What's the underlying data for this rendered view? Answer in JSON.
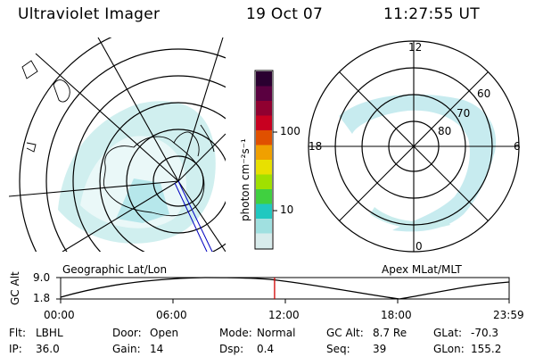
{
  "header": {
    "title": "Ultraviolet Imager",
    "date": "19 Oct 07",
    "time": "11:27:55 UT"
  },
  "left_panel": {
    "caption": "Geographic Lat/Lon"
  },
  "right_panel": {
    "caption": "Apex MLat/MLT",
    "mlt_labels": [
      "12",
      "18",
      "6",
      "0"
    ],
    "mlat_labels": [
      "60",
      "70",
      "80"
    ]
  },
  "colorbar": {
    "title": "photon cm⁻²s⁻¹",
    "ticks": [
      "100",
      "10"
    ],
    "colors": [
      "#2a0030",
      "#5a0040",
      "#900030",
      "#c80020",
      "#e05000",
      "#f0a000",
      "#e8e000",
      "#a0e000",
      "#40d040",
      "#20c8c0",
      "#a0e0e0",
      "#d8ecec"
    ]
  },
  "timeline": {
    "ylabel": "GC Alt",
    "yticks": [
      "9.0",
      "1.8"
    ],
    "xticks": [
      "00:00",
      "06:00",
      "12:00",
      "18:00",
      "23:59"
    ],
    "marker_fraction": 0.477
  },
  "status": {
    "row1": [
      {
        "key": "Flt:",
        "value": "LBHL"
      },
      {
        "key": "Door:",
        "value": "Open"
      },
      {
        "key": "Mode:",
        "value": "Normal"
      },
      {
        "key": "GC Alt:",
        "value": "8.7 Re"
      },
      {
        "key": "GLat:",
        "value": "-70.3"
      }
    ],
    "row2": [
      {
        "key": "IP:",
        "value": "36.0"
      },
      {
        "key": "Gain:",
        "value": "14"
      },
      {
        "key": "Dsp:",
        "value": "0.4"
      },
      {
        "key": "Seq:",
        "value": "39"
      },
      {
        "key": "GLon:",
        "value": "155.2"
      }
    ]
  }
}
